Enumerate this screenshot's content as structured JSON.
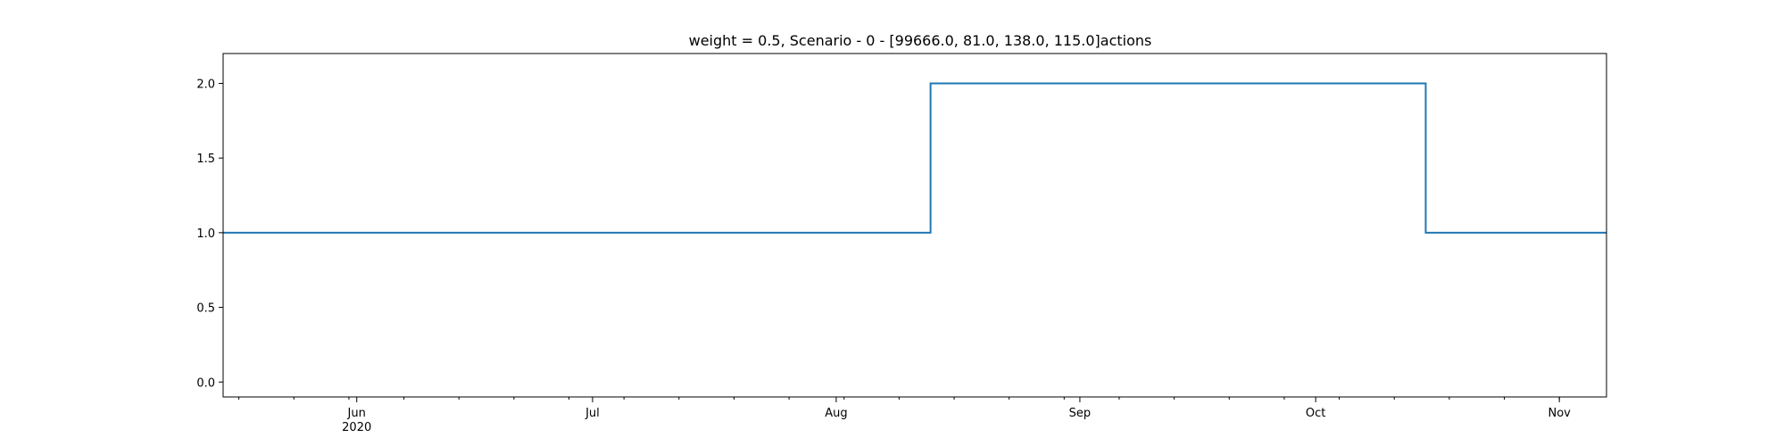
{
  "chart_data": {
    "type": "line",
    "drawstyle": "steps-post",
    "title": "weight = 0.5, Scenario - 0 - [99666.0, 81.0, 138.0, 115.0]actions",
    "xlabel": "",
    "ylabel": "",
    "xlim": [
      "2020-05-15",
      "2020-11-07"
    ],
    "ylim": [
      -0.1,
      2.2
    ],
    "yticks": [
      0.0,
      0.5,
      1.0,
      1.5,
      2.0
    ],
    "ytick_labels": [
      "0.0",
      "0.5",
      "1.0",
      "1.5",
      "2.0"
    ],
    "xticks": [
      {
        "date": "2020-06-01",
        "label": "Jun",
        "sublabel": "2020"
      },
      {
        "date": "2020-07-01",
        "label": "Jul",
        "sublabel": ""
      },
      {
        "date": "2020-08-01",
        "label": "Aug",
        "sublabel": ""
      },
      {
        "date": "2020-09-01",
        "label": "Sep",
        "sublabel": ""
      },
      {
        "date": "2020-10-01",
        "label": "Oct",
        "sublabel": ""
      },
      {
        "date": "2020-11-01",
        "label": "Nov",
        "sublabel": ""
      }
    ],
    "grid": false,
    "series": [
      {
        "color": "#1f77b4",
        "points": [
          {
            "x": "2020-05-15",
            "y": 1.0
          },
          {
            "x": "2020-08-13",
            "y": 2.0
          },
          {
            "x": "2020-10-15",
            "y": 1.0
          },
          {
            "x": "2020-11-07",
            "y": 1.0
          }
        ]
      }
    ]
  }
}
